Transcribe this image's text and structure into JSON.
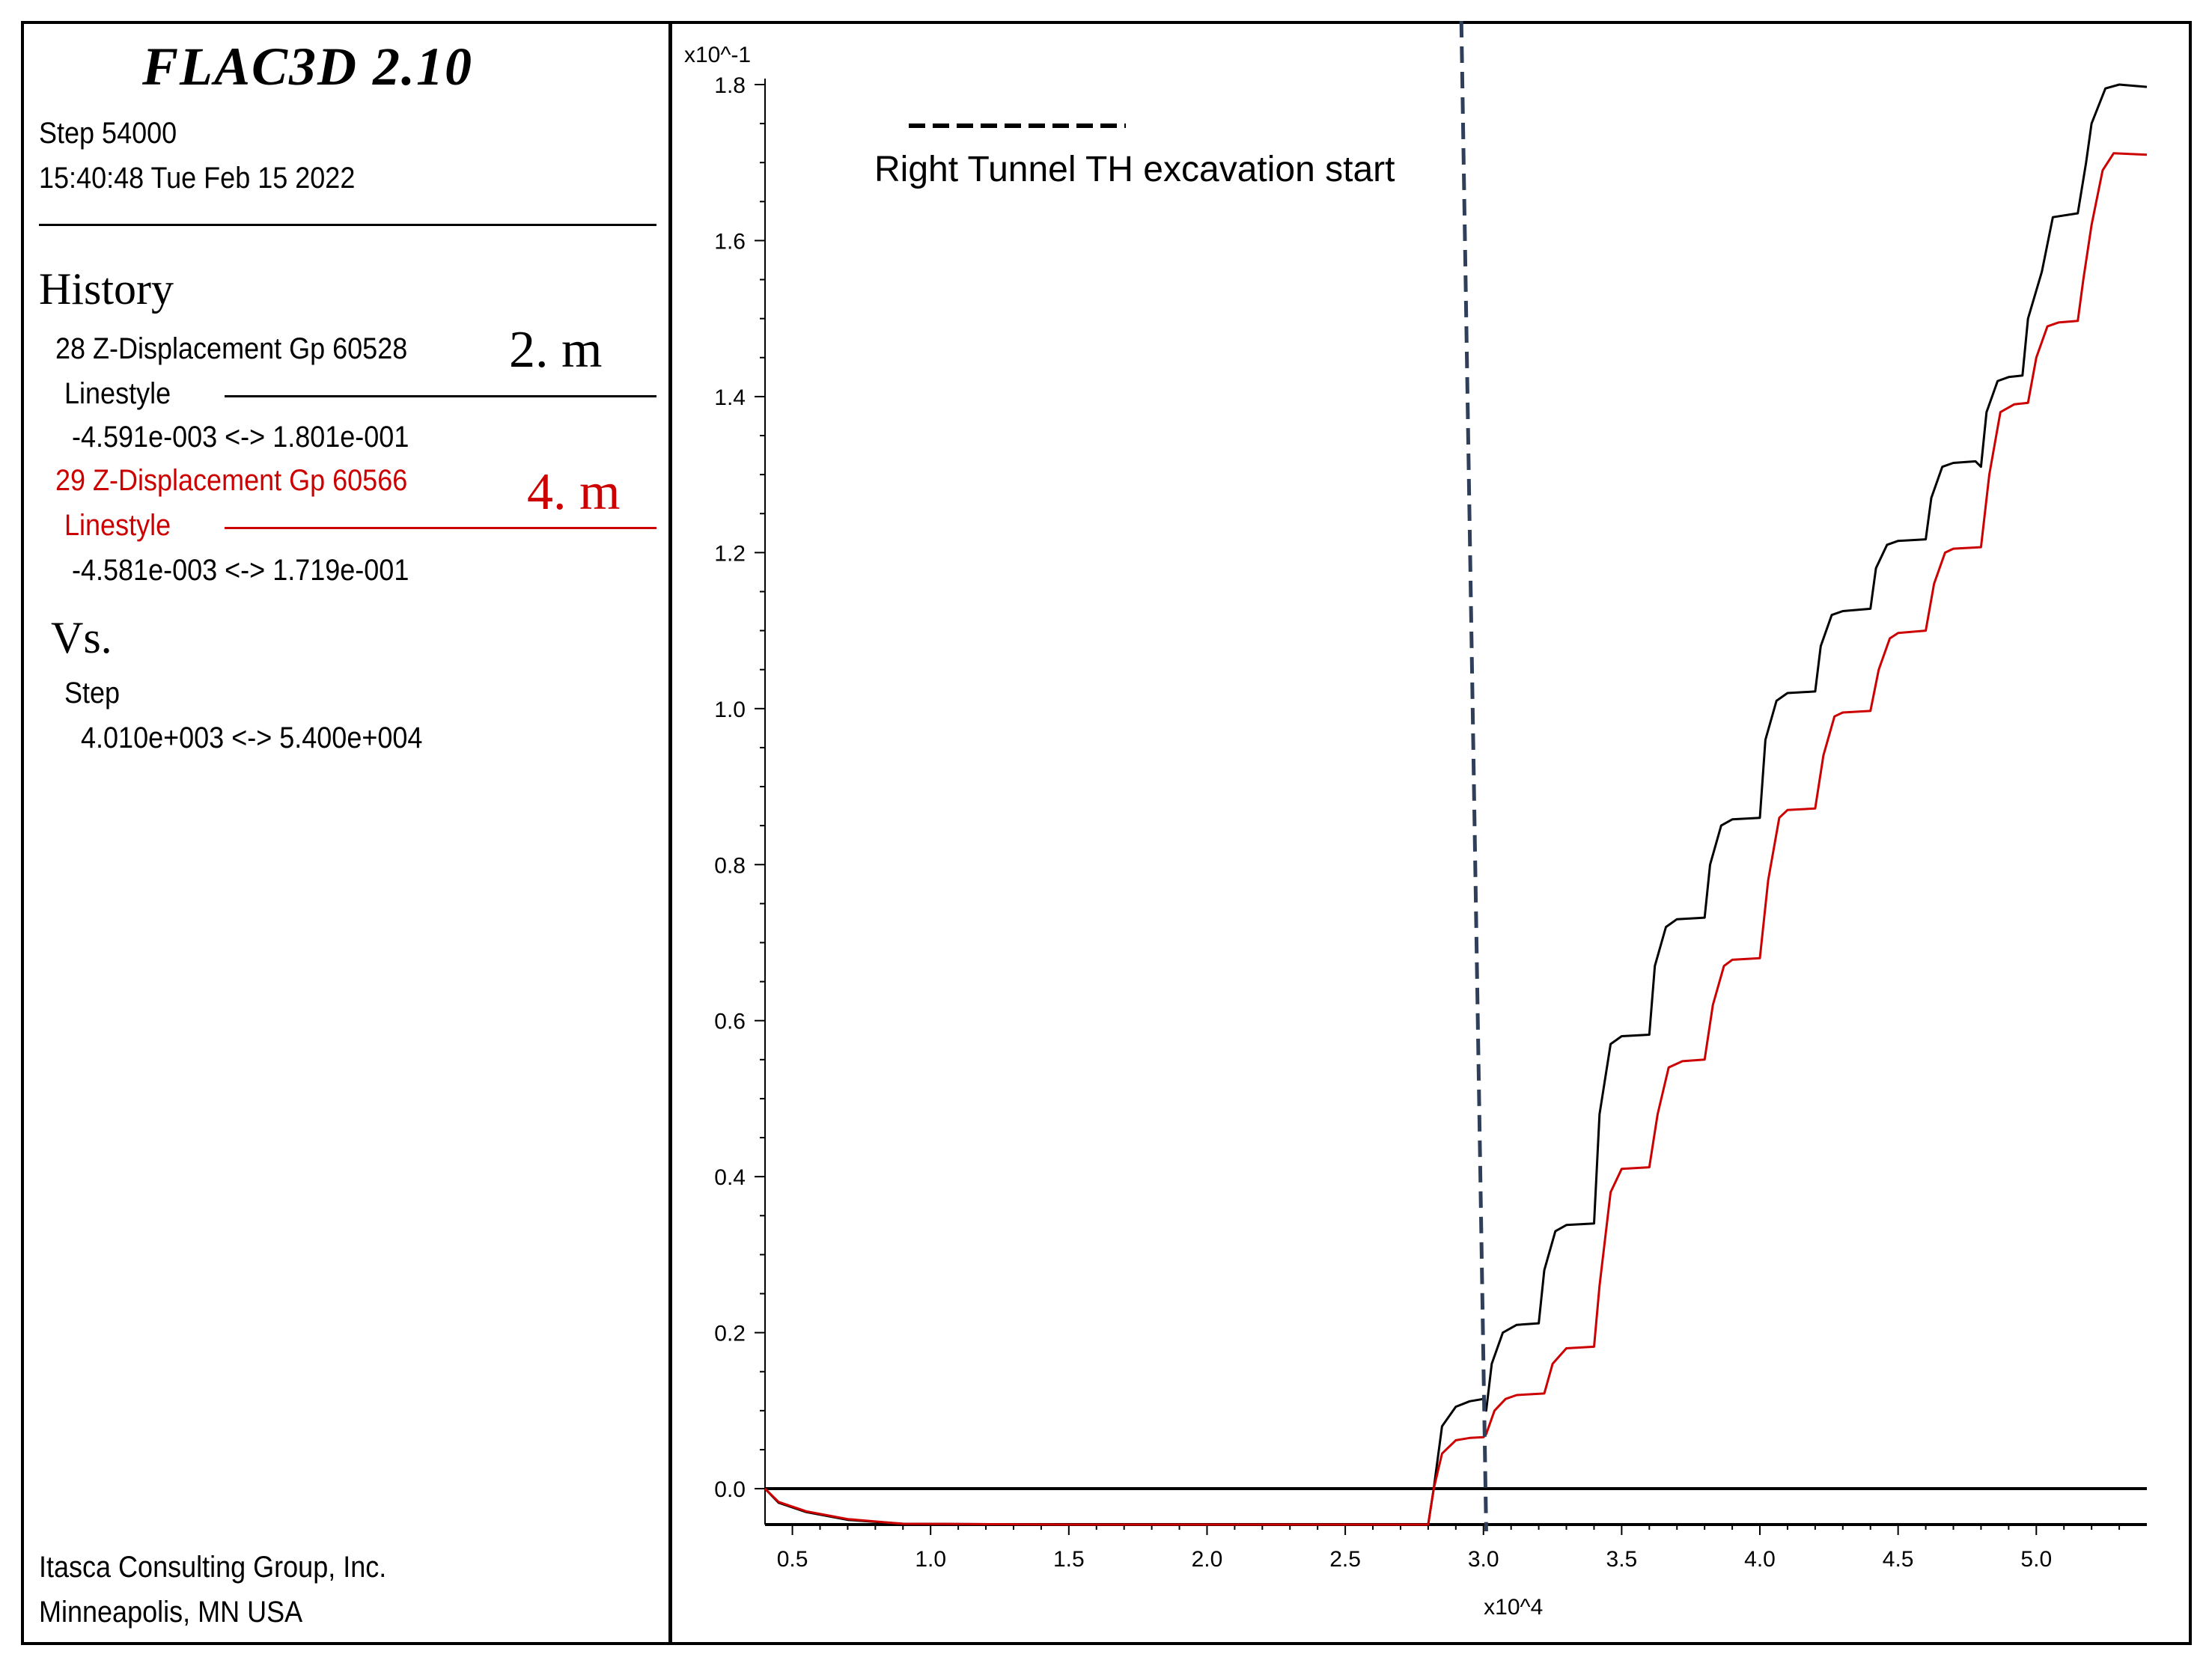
{
  "legend_panel": {
    "app_title": "FLAC3D 2.10",
    "step_line": "Step 54000",
    "timestamp": "15:40:48 Tue Feb 15 2022",
    "history_heading": "History",
    "series": [
      {
        "label": "28 Z-Displacement Gp 60528",
        "note": "2. m",
        "linestyle_label": "Linestyle",
        "range": "-4.591e-003 <-> 1.801e-001",
        "color": "#000000"
      },
      {
        "label": "29 Z-Displacement Gp 60566",
        "note": "4. m",
        "linestyle_label": "Linestyle",
        "range": "-4.581e-003 <-> 1.719e-001",
        "color": "#cc0000"
      }
    ],
    "vs_heading": "Vs.",
    "x_variable": "Step",
    "x_range": "4.010e+003 <-> 5.400e+004",
    "company": "Itasca Consulting Group, Inc.",
    "location": "Minneapolis, MN  USA"
  },
  "chart_data": {
    "type": "line",
    "title": "",
    "xlabel": "x10^4",
    "ylabel": "x10^-1",
    "xlim": [
      0.401,
      5.4
    ],
    "ylim": [
      -0.046,
      1.8
    ],
    "xticks": [
      0.5,
      1.0,
      1.5,
      2.0,
      2.5,
      3.0,
      3.5,
      4.0,
      4.5,
      5.0
    ],
    "xtick_labels": [
      "0.5",
      "1.0",
      "1.5",
      "2.0",
      "2.5",
      "3.0",
      "3.5",
      "4.0",
      "4.5",
      "5.0"
    ],
    "yticks": [
      0.0,
      0.2,
      0.4,
      0.6,
      0.8,
      1.0,
      1.2,
      1.4,
      1.6,
      1.8
    ],
    "ytick_labels": [
      "0.0",
      "0.2",
      "0.4",
      "0.6",
      "0.8",
      "1.0",
      "1.2",
      "1.4",
      "1.6",
      "1.8"
    ],
    "zero_line": 0.0,
    "annotation": {
      "text": "Right Tunnel TH excavation start",
      "x_top": 2.92,
      "x_bottom": 3.01,
      "style": "dashed",
      "color": "#2f3f5a"
    },
    "series": [
      {
        "name": "28 Z-Displacement Gp 60528 (2. m)",
        "color": "#000000",
        "points": [
          [
            0.401,
            0.0
          ],
          [
            0.45,
            -0.018
          ],
          [
            0.55,
            -0.03
          ],
          [
            0.7,
            -0.04
          ],
          [
            0.9,
            -0.045
          ],
          [
            1.5,
            -0.046
          ],
          [
            2.0,
            -0.046
          ],
          [
            2.5,
            -0.046
          ],
          [
            2.8,
            -0.046
          ],
          [
            2.82,
            0.0
          ],
          [
            2.85,
            0.08
          ],
          [
            2.9,
            0.105
          ],
          [
            2.95,
            0.112
          ],
          [
            3.0,
            0.115
          ],
          [
            3.01,
            0.1
          ],
          [
            3.03,
            0.16
          ],
          [
            3.07,
            0.2
          ],
          [
            3.12,
            0.21
          ],
          [
            3.2,
            0.212
          ],
          [
            3.22,
            0.28
          ],
          [
            3.26,
            0.33
          ],
          [
            3.3,
            0.338
          ],
          [
            3.4,
            0.34
          ],
          [
            3.42,
            0.48
          ],
          [
            3.46,
            0.57
          ],
          [
            3.5,
            0.58
          ],
          [
            3.6,
            0.582
          ],
          [
            3.62,
            0.67
          ],
          [
            3.66,
            0.72
          ],
          [
            3.7,
            0.73
          ],
          [
            3.8,
            0.732
          ],
          [
            3.82,
            0.8
          ],
          [
            3.86,
            0.85
          ],
          [
            3.9,
            0.858
          ],
          [
            4.0,
            0.86
          ],
          [
            4.02,
            0.96
          ],
          [
            4.06,
            1.01
          ],
          [
            4.1,
            1.02
          ],
          [
            4.2,
            1.022
          ],
          [
            4.22,
            1.08
          ],
          [
            4.26,
            1.12
          ],
          [
            4.3,
            1.125
          ],
          [
            4.4,
            1.128
          ],
          [
            4.42,
            1.18
          ],
          [
            4.46,
            1.21
          ],
          [
            4.5,
            1.215
          ],
          [
            4.6,
            1.217
          ],
          [
            4.62,
            1.27
          ],
          [
            4.66,
            1.31
          ],
          [
            4.7,
            1.315
          ],
          [
            4.78,
            1.317
          ],
          [
            4.8,
            1.31
          ],
          [
            4.82,
            1.38
          ],
          [
            4.86,
            1.42
          ],
          [
            4.9,
            1.425
          ],
          [
            4.95,
            1.427
          ],
          [
            4.97,
            1.5
          ],
          [
            5.02,
            1.56
          ],
          [
            5.06,
            1.63
          ],
          [
            5.15,
            1.635
          ],
          [
            5.18,
            1.7
          ],
          [
            5.2,
            1.75
          ],
          [
            5.25,
            1.795
          ],
          [
            5.3,
            1.8
          ],
          [
            5.4,
            1.797
          ]
        ]
      },
      {
        "name": "29 Z-Displacement Gp 60566 (4. m)",
        "color": "#cc0000",
        "points": [
          [
            0.401,
            0.0
          ],
          [
            0.45,
            -0.017
          ],
          [
            0.55,
            -0.029
          ],
          [
            0.7,
            -0.039
          ],
          [
            0.9,
            -0.045
          ],
          [
            1.5,
            -0.046
          ],
          [
            2.0,
            -0.046
          ],
          [
            2.5,
            -0.046
          ],
          [
            2.8,
            -0.046
          ],
          [
            2.82,
            0.0
          ],
          [
            2.85,
            0.045
          ],
          [
            2.9,
            0.062
          ],
          [
            2.95,
            0.065
          ],
          [
            3.0,
            0.066
          ],
          [
            3.01,
            0.07
          ],
          [
            3.04,
            0.1
          ],
          [
            3.08,
            0.115
          ],
          [
            3.12,
            0.12
          ],
          [
            3.22,
            0.122
          ],
          [
            3.25,
            0.16
          ],
          [
            3.3,
            0.18
          ],
          [
            3.4,
            0.182
          ],
          [
            3.42,
            0.26
          ],
          [
            3.46,
            0.38
          ],
          [
            3.5,
            0.41
          ],
          [
            3.6,
            0.412
          ],
          [
            3.63,
            0.48
          ],
          [
            3.67,
            0.54
          ],
          [
            3.72,
            0.548
          ],
          [
            3.8,
            0.55
          ],
          [
            3.83,
            0.62
          ],
          [
            3.87,
            0.67
          ],
          [
            3.9,
            0.678
          ],
          [
            4.0,
            0.68
          ],
          [
            4.03,
            0.78
          ],
          [
            4.07,
            0.86
          ],
          [
            4.1,
            0.87
          ],
          [
            4.2,
            0.872
          ],
          [
            4.23,
            0.94
          ],
          [
            4.27,
            0.99
          ],
          [
            4.3,
            0.995
          ],
          [
            4.4,
            0.997
          ],
          [
            4.43,
            1.05
          ],
          [
            4.47,
            1.09
          ],
          [
            4.5,
            1.097
          ],
          [
            4.6,
            1.1
          ],
          [
            4.63,
            1.16
          ],
          [
            4.67,
            1.2
          ],
          [
            4.7,
            1.205
          ],
          [
            4.8,
            1.207
          ],
          [
            4.83,
            1.3
          ],
          [
            4.87,
            1.38
          ],
          [
            4.92,
            1.39
          ],
          [
            4.97,
            1.392
          ],
          [
            5.0,
            1.45
          ],
          [
            5.04,
            1.49
          ],
          [
            5.08,
            1.495
          ],
          [
            5.15,
            1.497
          ],
          [
            5.17,
            1.55
          ],
          [
            5.2,
            1.62
          ],
          [
            5.24,
            1.69
          ],
          [
            5.28,
            1.712
          ],
          [
            5.4,
            1.71
          ]
        ]
      }
    ]
  }
}
